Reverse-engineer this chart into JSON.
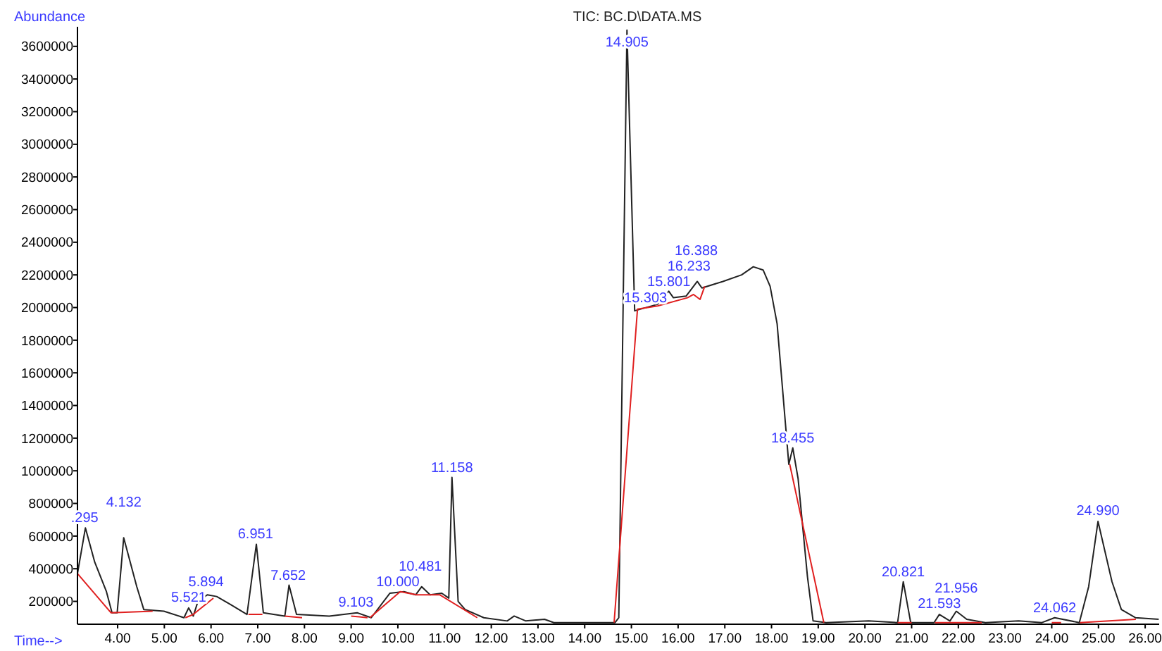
{
  "chart_data": {
    "type": "line",
    "title": "TIC: BC.D\\DATA.MS",
    "xlabel": "Time-->",
    "ylabel": "Abundance",
    "xlim": [
      3.14,
      26.3
    ],
    "xticks": [
      {
        "value": 4,
        "label": "4.00"
      },
      {
        "value": 5,
        "label": "5.00"
      },
      {
        "value": 6,
        "label": "6.00"
      },
      {
        "value": 7,
        "label": "7.00"
      },
      {
        "value": 8,
        "label": "8.00"
      },
      {
        "value": 9,
        "label": "9.00"
      },
      {
        "value": 10,
        "label": "10.00"
      },
      {
        "value": 11,
        "label": "11.00"
      },
      {
        "value": 12,
        "label": "12.00"
      },
      {
        "value": 13,
        "label": "13.00"
      },
      {
        "value": 14,
        "label": "14.00"
      },
      {
        "value": 15,
        "label": "15.00"
      },
      {
        "value": 16,
        "label": "16.00"
      },
      {
        "value": 17,
        "label": "17.00"
      },
      {
        "value": 18,
        "label": "18.00"
      },
      {
        "value": 19,
        "label": "19.00"
      },
      {
        "value": 20,
        "label": "20.00"
      },
      {
        "value": 21,
        "label": "21.00"
      },
      {
        "value": 22,
        "label": "22.00"
      },
      {
        "value": 23,
        "label": "23.00"
      },
      {
        "value": 24,
        "label": "24.00"
      },
      {
        "value": 25,
        "label": "25.00"
      },
      {
        "value": 26,
        "label": "26.00"
      }
    ],
    "ylim": [
      60000,
      3720000
    ],
    "yticks": [
      200000,
      400000,
      600000,
      800000,
      1000000,
      1200000,
      1400000,
      1600000,
      1800000,
      2000000,
      2200000,
      2400000,
      2600000,
      2800000,
      3000000,
      3200000,
      3400000,
      3600000
    ],
    "grid": false,
    "marker": "none",
    "line_style": "solid",
    "series": [
      {
        "color": "#222222",
        "x": [
          3.14,
          3.31,
          3.51,
          3.76,
          3.88,
          3.99,
          4.13,
          4.41,
          4.56,
          4.99,
          5.42,
          5.52,
          5.62,
          5.72,
          5.92,
          6.12,
          6.42,
          6.77,
          6.97,
          7.12,
          7.58,
          7.67,
          7.83,
          8.53,
          9.13,
          9.43,
          9.83,
          10.13,
          10.38,
          10.51,
          10.69,
          10.94,
          11.09,
          11.158,
          11.29,
          11.44,
          11.84,
          12.34,
          12.49,
          12.74,
          13.14,
          13.34,
          14.04,
          14.65,
          14.73,
          14.905,
          15.07,
          15.56,
          15.8,
          15.9,
          16.17,
          16.41,
          16.51,
          16.96,
          17.36,
          17.61,
          17.82,
          17.97,
          18.12,
          18.37,
          18.455,
          18.57,
          18.77,
          18.89,
          19.17,
          20.08,
          20.7,
          20.821,
          20.98,
          21.48,
          21.593,
          21.82,
          21.956,
          22.18,
          22.58,
          23.29,
          23.79,
          24.062,
          24.59,
          24.79,
          24.99,
          25.29,
          25.49,
          25.79,
          26.29
        ],
        "values": [
          370000,
          650000,
          440000,
          260000,
          130000,
          130000,
          590000,
          290000,
          150000,
          140000,
          100000,
          160000,
          110000,
          200000,
          240000,
          230000,
          180000,
          120000,
          550000,
          130000,
          110000,
          300000,
          120000,
          110000,
          130000,
          100000,
          250000,
          260000,
          240000,
          290000,
          240000,
          250000,
          220000,
          960000,
          200000,
          150000,
          100000,
          80000,
          110000,
          80000,
          90000,
          70000,
          70000,
          70000,
          100000,
          3700000,
          1980000,
          2020000,
          2100000,
          2060000,
          2070000,
          2160000,
          2120000,
          2160000,
          2200000,
          2250000,
          2230000,
          2130000,
          1900000,
          1040000,
          1140000,
          950000,
          350000,
          80000,
          70000,
          80000,
          70000,
          320000,
          70000,
          70000,
          120000,
          80000,
          140000,
          90000,
          70000,
          80000,
          70000,
          100000,
          70000,
          290000,
          690000,
          320000,
          150000,
          100000,
          90000
        ]
      },
      {
        "color": "#e02020",
        "x": [
          3.14,
          3.86,
          4.75,
          5.0,
          5.45,
          5.62,
          6.05,
          6.3,
          6.8,
          7.1,
          7.3,
          7.58,
          7.95,
          8.2,
          9.0,
          9.35,
          9.38,
          9.4,
          10.05,
          10.4,
          10.9,
          11.7,
          12.5,
          14.63,
          15.13,
          15.56,
          16.2,
          16.33,
          16.47,
          16.57,
          17.0,
          18.39,
          19.12,
          19.5,
          20.7,
          21.0,
          21.2,
          21.5,
          22.5,
          23.0,
          24.0,
          24.2,
          24.4,
          24.6,
          25.8
        ],
        "values": [
          370000,
          130000,
          140000,
          null,
          100000,
          120000,
          220000,
          null,
          120000,
          120000,
          null,
          110000,
          100000,
          null,
          110000,
          100000,
          null,
          100000,
          260000,
          240000,
          240000,
          100000,
          null,
          70000,
          1990000,
          2010000,
          2060000,
          2080000,
          2050000,
          2130000,
          null,
          1040000,
          70000,
          null,
          70000,
          70000,
          null,
          70000,
          70000,
          null,
          70000,
          70000,
          null,
          70000,
          90000
        ]
      }
    ],
    "annotations": [
      {
        "text": ".295",
        "x": 3.295,
        "y": 651000
      },
      {
        "text": "4.132",
        "x": 4.132,
        "y": 593000
      },
      {
        "text": "5.521",
        "x": 5.521,
        "y": 162000
      },
      {
        "text": "5.894",
        "x": 5.894,
        "y": 243000
      },
      {
        "text": "6.951",
        "x": 6.951,
        "y": 550000
      },
      {
        "text": "7.652",
        "x": 7.652,
        "y": 297000
      },
      {
        "text": "9.103",
        "x": 9.103,
        "y": 134000
      },
      {
        "text": "10.000",
        "x": 10.0,
        "y": 257000
      },
      {
        "text": "10.481",
        "x": 10.481,
        "y": 286000
      },
      {
        "text": "11.158",
        "x": 11.158,
        "y": 959000
      },
      {
        "text": "14.905",
        "x": 14.905,
        "y": 3700000
      },
      {
        "text": "15.303",
        "x": 15.303,
        "y": 2000000
      },
      {
        "text": "15.801",
        "x": 15.801,
        "y": 2097000
      },
      {
        "text": "16.233",
        "x": 16.233,
        "y": 2090000
      },
      {
        "text": "16.388",
        "x": 16.388,
        "y": 2160000
      },
      {
        "text": "18.455",
        "x": 18.455,
        "y": 1140000
      },
      {
        "text": "20.821",
        "x": 20.821,
        "y": 321000
      },
      {
        "text": "21.593",
        "x": 21.593,
        "y": 125000
      },
      {
        "text": "21.956",
        "x": 21.956,
        "y": 142000
      },
      {
        "text": "24.062",
        "x": 24.062,
        "y": 97000
      },
      {
        "text": "24.990",
        "x": 24.99,
        "y": 694000
      }
    ]
  }
}
